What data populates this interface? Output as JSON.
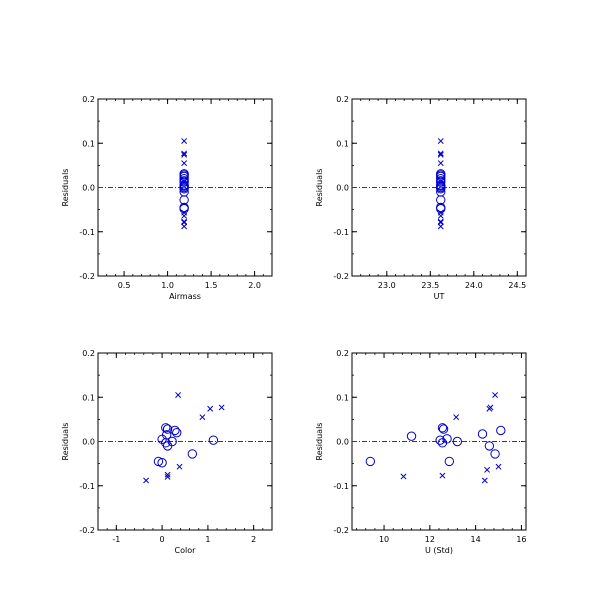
{
  "colors": {
    "marker": "#0000cc",
    "zero_line": "#cc0000",
    "frame": "#000000"
  },
  "chart_data": [
    {
      "type": "scatter",
      "xlabel": "Airmass",
      "ylabel": "Residuals",
      "xlim": [
        0.2,
        2.2
      ],
      "ylim": [
        -0.2,
        0.2
      ],
      "xticks": [
        0.5,
        1.0,
        1.5,
        2.0
      ],
      "xtick_labels": [
        "0.5",
        "1.0",
        "1.5",
        "2.0"
      ],
      "yticks": [
        -0.2,
        -0.1,
        0.0,
        0.1,
        0.2
      ],
      "ytick_labels": [
        "-0.2",
        "-0.1",
        "0.0",
        "0.1",
        "0.2"
      ],
      "reference_line_y": 0.0,
      "series": [
        {
          "marker": "circle",
          "points": [
            [
              1.19,
              0.031
            ],
            [
              1.19,
              0.028
            ],
            [
              1.19,
              0.025
            ],
            [
              1.19,
              0.02
            ],
            [
              1.19,
              0.015
            ],
            [
              1.19,
              0.012
            ],
            [
              1.19,
              0.005
            ],
            [
              1.19,
              0.003
            ],
            [
              1.19,
              0.0
            ],
            [
              1.19,
              -0.003
            ],
            [
              1.19,
              -0.01
            ],
            [
              1.19,
              -0.028
            ],
            [
              1.19,
              -0.045
            ],
            [
              1.19,
              -0.048
            ]
          ]
        },
        {
          "marker": "cross",
          "points": [
            [
              1.19,
              0.105
            ],
            [
              1.19,
              0.077
            ],
            [
              1.19,
              0.074
            ],
            [
              1.19,
              0.055
            ],
            [
              1.19,
              -0.057
            ],
            [
              1.19,
              -0.064
            ],
            [
              1.19,
              -0.077
            ],
            [
              1.19,
              -0.079
            ],
            [
              1.19,
              -0.088
            ]
          ]
        }
      ]
    },
    {
      "type": "scatter",
      "xlabel": "UT",
      "ylabel": "Residuals",
      "xlim": [
        22.6,
        24.6
      ],
      "ylim": [
        -0.2,
        0.2
      ],
      "xticks": [
        23.0,
        23.5,
        24.0,
        24.5
      ],
      "xtick_labels": [
        "23.0",
        "23.5",
        "24.0",
        "24.5"
      ],
      "yticks": [
        -0.2,
        -0.1,
        0.0,
        0.1,
        0.2
      ],
      "ytick_labels": [
        "-0.2",
        "-0.1",
        "0.0",
        "0.1",
        "0.2"
      ],
      "reference_line_y": 0.0,
      "series": [
        {
          "marker": "circle",
          "points": [
            [
              23.62,
              0.031
            ],
            [
              23.62,
              0.028
            ],
            [
              23.62,
              0.025
            ],
            [
              23.62,
              0.02
            ],
            [
              23.62,
              0.015
            ],
            [
              23.62,
              0.012
            ],
            [
              23.62,
              0.005
            ],
            [
              23.62,
              0.003
            ],
            [
              23.62,
              0.0
            ],
            [
              23.62,
              -0.003
            ],
            [
              23.62,
              -0.01
            ],
            [
              23.62,
              -0.028
            ],
            [
              23.62,
              -0.045
            ],
            [
              23.62,
              -0.048
            ]
          ]
        },
        {
          "marker": "cross",
          "points": [
            [
              23.62,
              0.105
            ],
            [
              23.62,
              0.077
            ],
            [
              23.62,
              0.074
            ],
            [
              23.62,
              0.055
            ],
            [
              23.62,
              -0.057
            ],
            [
              23.62,
              -0.064
            ],
            [
              23.62,
              -0.077
            ],
            [
              23.62,
              -0.079
            ],
            [
              23.62,
              -0.088
            ]
          ]
        }
      ]
    },
    {
      "type": "scatter",
      "xlabel": "Color",
      "ylabel": "Residuals",
      "xlim": [
        -1.4,
        2.4
      ],
      "ylim": [
        -0.2,
        0.2
      ],
      "xticks": [
        -1,
        0,
        1,
        2
      ],
      "xtick_labels": [
        "-1",
        "0",
        "1",
        "2"
      ],
      "yticks": [
        -0.2,
        -0.1,
        0.0,
        0.1,
        0.2
      ],
      "ytick_labels": [
        "-0.2",
        "-0.1",
        "0.0",
        "0.1",
        "0.2"
      ],
      "reference_line_y": 0.0,
      "series": [
        {
          "marker": "circle",
          "points": [
            [
              0.08,
              0.031
            ],
            [
              0.12,
              0.028
            ],
            [
              0.28,
              0.025
            ],
            [
              0.32,
              0.02
            ],
            [
              0.1,
              0.015
            ],
            [
              0.0,
              0.005
            ],
            [
              1.12,
              0.003
            ],
            [
              0.22,
              0.0
            ],
            [
              0.12,
              -0.01
            ],
            [
              0.08,
              -0.003
            ],
            [
              0.66,
              -0.028
            ],
            [
              -0.08,
              -0.045
            ],
            [
              0.0,
              -0.048
            ]
          ]
        },
        {
          "marker": "cross",
          "points": [
            [
              0.35,
              0.105
            ],
            [
              1.3,
              0.077
            ],
            [
              1.05,
              0.074
            ],
            [
              0.88,
              0.055
            ],
            [
              0.38,
              -0.057
            ],
            [
              0.12,
              -0.075
            ],
            [
              0.12,
              -0.08
            ],
            [
              -0.35,
              -0.088
            ]
          ]
        }
      ]
    },
    {
      "type": "scatter",
      "xlabel": "U (Std)",
      "ylabel": "Residuals",
      "xlim": [
        8.6,
        16.2
      ],
      "ylim": [
        -0.2,
        0.2
      ],
      "xticks": [
        10,
        12,
        14,
        16
      ],
      "xtick_labels": [
        "10",
        "12",
        "14",
        "16"
      ],
      "yticks": [
        -0.2,
        -0.1,
        0.0,
        0.1,
        0.2
      ],
      "ytick_labels": [
        "-0.2",
        "-0.1",
        "0.0",
        "0.1",
        "0.2"
      ],
      "reference_line_y": 0.0,
      "series": [
        {
          "marker": "circle",
          "points": [
            [
              12.55,
              0.031
            ],
            [
              12.6,
              0.028
            ],
            [
              15.1,
              0.025
            ],
            [
              14.3,
              0.017
            ],
            [
              11.2,
              0.012
            ],
            [
              12.75,
              0.006
            ],
            [
              12.45,
              0.003
            ],
            [
              13.2,
              0.0
            ],
            [
              12.55,
              -0.003
            ],
            [
              14.6,
              -0.01
            ],
            [
              14.85,
              -0.028
            ],
            [
              12.85,
              -0.045
            ],
            [
              9.4,
              -0.045
            ]
          ]
        },
        {
          "marker": "cross",
          "points": [
            [
              14.85,
              0.105
            ],
            [
              14.65,
              0.077
            ],
            [
              14.6,
              0.074
            ],
            [
              13.15,
              0.055
            ],
            [
              15.0,
              -0.057
            ],
            [
              14.5,
              -0.064
            ],
            [
              10.85,
              -0.079
            ],
            [
              12.55,
              -0.077
            ],
            [
              14.4,
              -0.088
            ]
          ]
        }
      ]
    }
  ]
}
